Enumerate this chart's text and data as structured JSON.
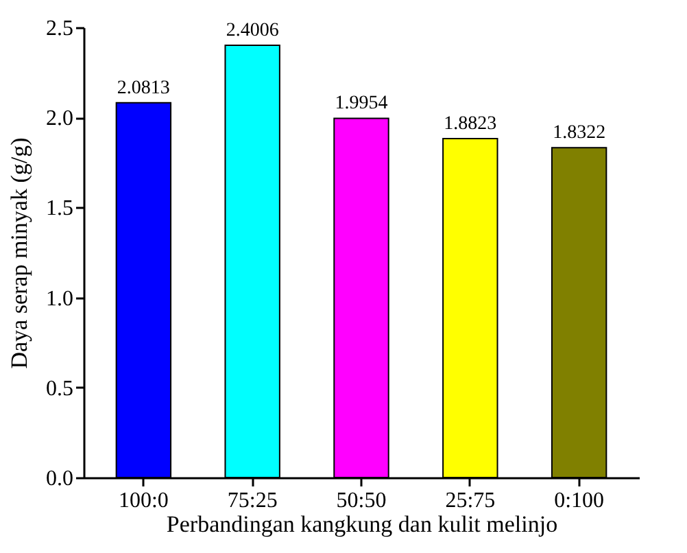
{
  "chart_data": {
    "type": "bar",
    "xlabel": "Perbandingan kangkung dan kulit melinjo",
    "ylabel": "Daya serap minyak (g/g)",
    "categories": [
      "100:0",
      "75:25",
      "50:50",
      "25:75",
      "0:100"
    ],
    "values": [
      2.0813,
      2.4006,
      1.9954,
      1.8823,
      1.8322
    ],
    "colors": [
      "#0000ff",
      "#00ffff",
      "#ff00ff",
      "#ffff00",
      "#808000"
    ],
    "ylim": [
      0,
      2.5
    ],
    "yticks": [
      {
        "value": 0,
        "label": "0.0"
      },
      0.5,
      {
        "value": 1,
        "label": "1.0"
      },
      1.5,
      {
        "value": 2,
        "label": "2.0"
      },
      2.5
    ],
    "data_labels": true,
    "grid": false
  }
}
